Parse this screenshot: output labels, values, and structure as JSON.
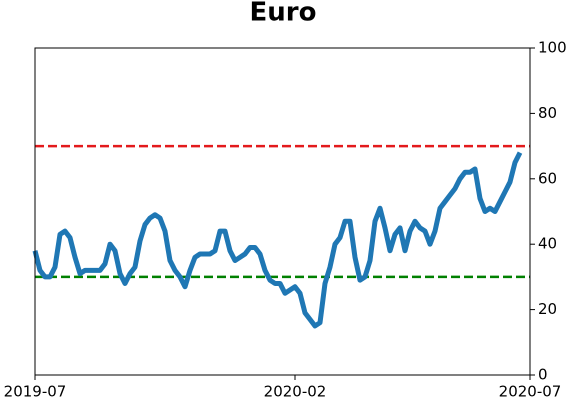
{
  "chart_data": {
    "type": "line",
    "title": "Euro",
    "series": [
      {
        "color": "#1f77b4",
        "values": [
          38,
          32,
          30,
          30,
          33,
          43,
          44,
          42,
          36,
          31,
          32,
          32,
          32,
          32,
          34,
          40,
          38,
          31,
          28,
          31,
          33,
          41,
          46,
          48,
          49,
          48,
          44,
          35,
          32,
          30,
          27,
          32,
          36,
          37,
          37,
          37,
          38,
          44,
          44,
          38,
          35,
          36,
          37,
          39,
          39,
          37,
          32,
          29,
          28,
          28,
          25,
          26,
          27,
          25,
          19,
          17,
          15,
          16,
          28,
          33,
          40,
          42,
          47,
          47,
          36,
          29,
          30,
          35,
          47,
          51,
          45,
          38,
          43,
          45,
          38,
          44,
          47,
          45,
          44,
          40,
          44,
          51,
          53,
          55,
          57,
          60,
          62,
          62,
          63,
          54,
          50,
          51,
          50,
          53,
          56,
          59,
          65,
          68
        ]
      }
    ],
    "xlim": [
      0,
      99
    ],
    "xticks": [
      {
        "value": 0,
        "label": "2019-07"
      },
      {
        "value": 52,
        "label": "2020-02"
      },
      {
        "value": 99,
        "label": "2020-07"
      }
    ],
    "ylim": [
      0,
      100
    ],
    "yticks": [
      0,
      20,
      40,
      60,
      80,
      100
    ],
    "y_axis_side": "right",
    "reference_lines": [
      {
        "value": 70,
        "color": "#e31a1c"
      },
      {
        "value": 30,
        "color": "#008000"
      }
    ]
  }
}
